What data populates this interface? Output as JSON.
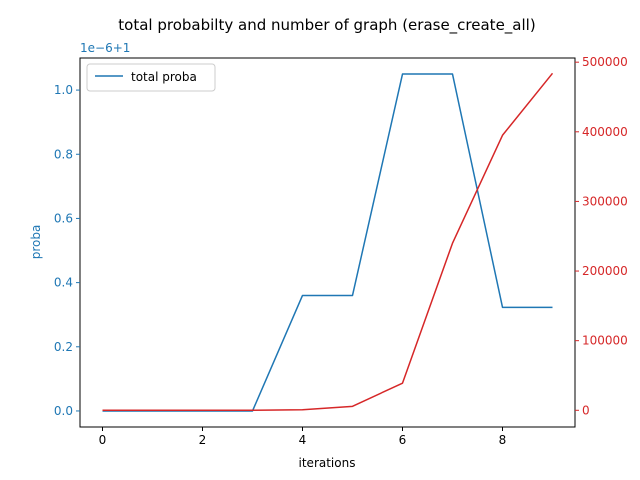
{
  "chart_data": {
    "type": "line",
    "title": "total probabilty and number of graph (erase_create_all)",
    "xlabel": "iterations",
    "xlim": [
      -0.45,
      9.45
    ],
    "xticks": [
      0,
      2,
      4,
      6,
      8
    ],
    "x": [
      0,
      1,
      2,
      3,
      4,
      5,
      6,
      7,
      8,
      9
    ],
    "left_axis": {
      "label": "proba",
      "color": "#1f77b4",
      "offset_text": "1e−6+1",
      "ylim": [
        -0.05,
        1.1
      ],
      "ticks": [
        0.0,
        0.2,
        0.4,
        0.6,
        0.8,
        1.0
      ],
      "tick_labels": [
        "0.0",
        "0.2",
        "0.4",
        "0.6",
        "0.8",
        "1.0"
      ]
    },
    "right_axis": {
      "label": "",
      "color": "#d62728",
      "ylim": [
        -24000,
        506000
      ],
      "ticks": [
        0,
        100000,
        200000,
        300000,
        400000,
        500000
      ],
      "tick_labels": [
        "0",
        "100000",
        "200000",
        "300000",
        "400000",
        "500000"
      ]
    },
    "series": [
      {
        "name": "total proba",
        "axis": "left",
        "color": "#1f77b4",
        "values": [
          0.0,
          0.0,
          0.0,
          0.0,
          0.36,
          0.36,
          1.05,
          1.05,
          0.323,
          0.323
        ]
      },
      {
        "axis": "right",
        "color": "#d62728",
        "values": [
          0,
          0,
          0,
          0,
          800,
          5700,
          39000,
          240000,
          395000,
          484000
        ]
      }
    ],
    "legend": {
      "placement": "upper-left",
      "entries": [
        "total proba"
      ]
    }
  }
}
